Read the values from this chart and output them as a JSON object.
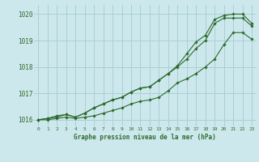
{
  "title": "Graphe pression niveau de la mer (hPa)",
  "bg_color": "#cce8ec",
  "grid_color": "#aacfd4",
  "line_color": "#2d6a2d",
  "marker_color": "#2d6a2d",
  "xlim": [
    -0.5,
    23.5
  ],
  "ylim": [
    1015.75,
    1020.35
  ],
  "yticks": [
    1016,
    1017,
    1018,
    1019,
    1020
  ],
  "xticks": [
    0,
    1,
    2,
    3,
    4,
    5,
    6,
    7,
    8,
    9,
    10,
    11,
    12,
    13,
    14,
    15,
    16,
    17,
    18,
    19,
    20,
    21,
    22,
    23
  ],
  "series1": [
    1016.0,
    1016.0,
    1016.05,
    1016.1,
    1016.05,
    1016.1,
    1016.15,
    1016.25,
    1016.35,
    1016.45,
    1016.6,
    1016.7,
    1016.75,
    1016.85,
    1017.1,
    1017.4,
    1017.55,
    1017.75,
    1018.0,
    1018.3,
    1018.85,
    1019.3,
    1019.3,
    1019.05
  ],
  "series2": [
    1016.0,
    1016.05,
    1016.1,
    1016.2,
    1016.1,
    1016.25,
    1016.45,
    1016.6,
    1016.75,
    1016.85,
    1017.05,
    1017.2,
    1017.25,
    1017.5,
    1017.75,
    1018.0,
    1018.3,
    1018.7,
    1019.0,
    1019.65,
    1019.85,
    1019.85,
    1019.85,
    1019.55
  ],
  "series3": [
    1016.0,
    1016.05,
    1016.15,
    1016.2,
    1016.1,
    1016.25,
    1016.45,
    1016.6,
    1016.75,
    1016.85,
    1017.05,
    1017.2,
    1017.25,
    1017.5,
    1017.75,
    1018.05,
    1018.5,
    1018.95,
    1019.2,
    1019.8,
    1019.95,
    1020.0,
    1020.0,
    1019.65
  ]
}
